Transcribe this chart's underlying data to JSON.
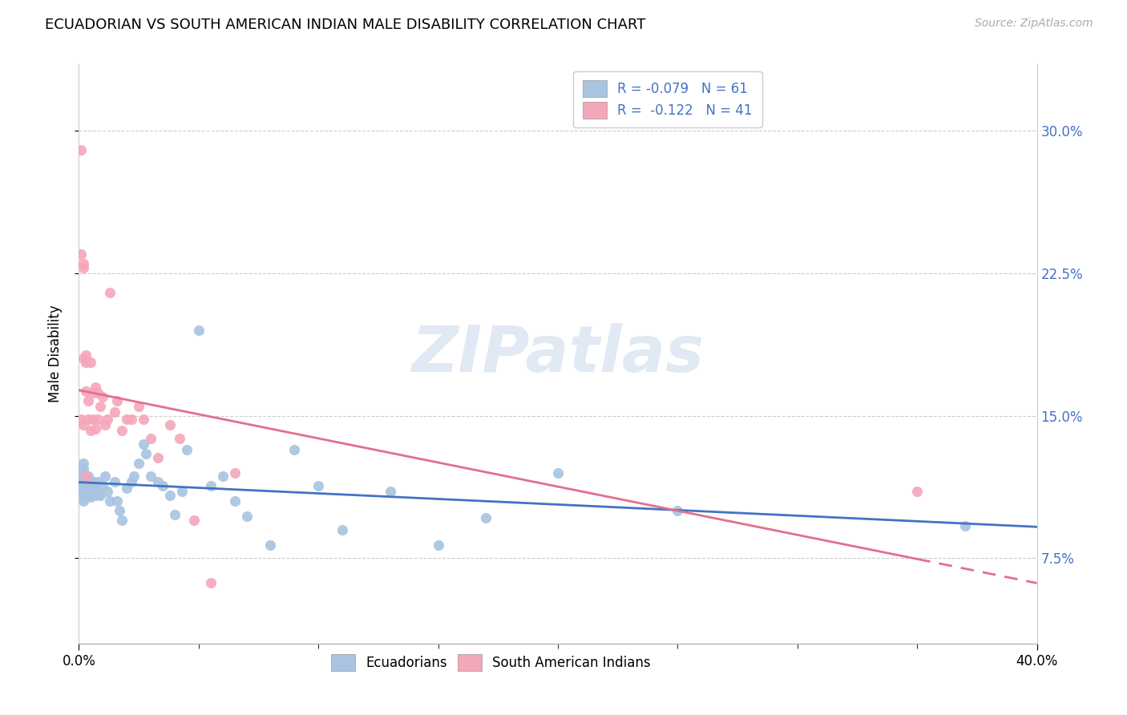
{
  "title": "ECUADORIAN VS SOUTH AMERICAN INDIAN MALE DISABILITY CORRELATION CHART",
  "source": "Source: ZipAtlas.com",
  "ylabel": "Male Disability",
  "ytick_labels": [
    "7.5%",
    "15.0%",
    "22.5%",
    "30.0%"
  ],
  "ytick_values": [
    0.075,
    0.15,
    0.225,
    0.3
  ],
  "xlim": [
    0.0,
    0.4
  ],
  "ylim": [
    0.03,
    0.335
  ],
  "legend_blue_R": "-0.079",
  "legend_blue_N": "61",
  "legend_pink_R": "-0.122",
  "legend_pink_N": "41",
  "blue_scatter_color": "#a8c4e0",
  "pink_scatter_color": "#f4a7b9",
  "blue_line_color": "#4472C4",
  "pink_line_color": "#E07090",
  "watermark": "ZIPatlas",
  "ecuadorians_x": [
    0.001,
    0.001,
    0.001,
    0.001,
    0.001,
    0.002,
    0.002,
    0.002,
    0.002,
    0.002,
    0.003,
    0.003,
    0.003,
    0.004,
    0.004,
    0.004,
    0.005,
    0.005,
    0.006,
    0.006,
    0.007,
    0.007,
    0.008,
    0.008,
    0.009,
    0.01,
    0.011,
    0.012,
    0.013,
    0.015,
    0.016,
    0.017,
    0.018,
    0.02,
    0.022,
    0.023,
    0.025,
    0.027,
    0.028,
    0.03,
    0.033,
    0.035,
    0.038,
    0.04,
    0.043,
    0.045,
    0.05,
    0.055,
    0.06,
    0.065,
    0.07,
    0.08,
    0.09,
    0.1,
    0.11,
    0.13,
    0.15,
    0.17,
    0.2,
    0.25,
    0.37
  ],
  "ecuadorians_y": [
    0.121,
    0.118,
    0.115,
    0.112,
    0.108,
    0.125,
    0.122,
    0.118,
    0.11,
    0.105,
    0.115,
    0.112,
    0.108,
    0.118,
    0.113,
    0.108,
    0.112,
    0.107,
    0.115,
    0.11,
    0.112,
    0.108,
    0.115,
    0.11,
    0.108,
    0.113,
    0.118,
    0.11,
    0.105,
    0.115,
    0.105,
    0.1,
    0.095,
    0.112,
    0.115,
    0.118,
    0.125,
    0.135,
    0.13,
    0.118,
    0.115,
    0.113,
    0.108,
    0.098,
    0.11,
    0.132,
    0.195,
    0.113,
    0.118,
    0.105,
    0.097,
    0.082,
    0.132,
    0.113,
    0.09,
    0.11,
    0.082,
    0.096,
    0.12,
    0.1,
    0.092
  ],
  "south_american_x": [
    0.001,
    0.001,
    0.001,
    0.002,
    0.002,
    0.002,
    0.002,
    0.003,
    0.003,
    0.003,
    0.003,
    0.004,
    0.004,
    0.005,
    0.005,
    0.006,
    0.006,
    0.007,
    0.007,
    0.008,
    0.008,
    0.009,
    0.01,
    0.011,
    0.012,
    0.013,
    0.015,
    0.016,
    0.018,
    0.02,
    0.022,
    0.025,
    0.027,
    0.03,
    0.033,
    0.038,
    0.042,
    0.048,
    0.055,
    0.065,
    0.35
  ],
  "south_american_y": [
    0.29,
    0.235,
    0.148,
    0.23,
    0.228,
    0.18,
    0.145,
    0.182,
    0.178,
    0.163,
    0.118,
    0.158,
    0.148,
    0.178,
    0.142,
    0.162,
    0.148,
    0.165,
    0.143,
    0.162,
    0.148,
    0.155,
    0.16,
    0.145,
    0.148,
    0.215,
    0.152,
    0.158,
    0.142,
    0.148,
    0.148,
    0.155,
    0.148,
    0.138,
    0.128,
    0.145,
    0.138,
    0.095,
    0.062,
    0.12,
    0.11
  ]
}
